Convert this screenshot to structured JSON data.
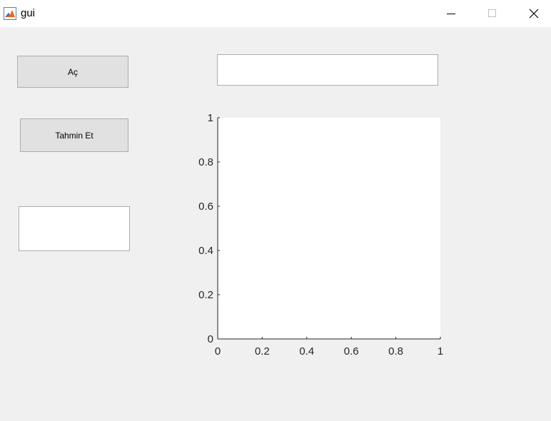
{
  "window": {
    "title": "gui",
    "app_icon": "matlab-icon",
    "controls": [
      "minimize-icon",
      "maximize-icon",
      "close-icon"
    ]
  },
  "buttons": {
    "open_label": "Aç",
    "predict_label": "Tahmin Et"
  },
  "text_fields": {
    "top_value": "",
    "result_value": ""
  },
  "chart_data": {
    "type": "line",
    "xlim": [
      0,
      1
    ],
    "ylim": [
      0,
      1
    ],
    "x_ticks": [
      "0",
      "0.2",
      "0.4",
      "0.6",
      "0.8",
      "1"
    ],
    "y_ticks": [
      "0",
      "0.2",
      "0.4",
      "0.6",
      "0.8",
      "1"
    ],
    "series": [],
    "grid": false
  },
  "colors": {
    "background": "#f0f0f0",
    "axes_background": "#ffffff",
    "axis_color": "#262626"
  }
}
